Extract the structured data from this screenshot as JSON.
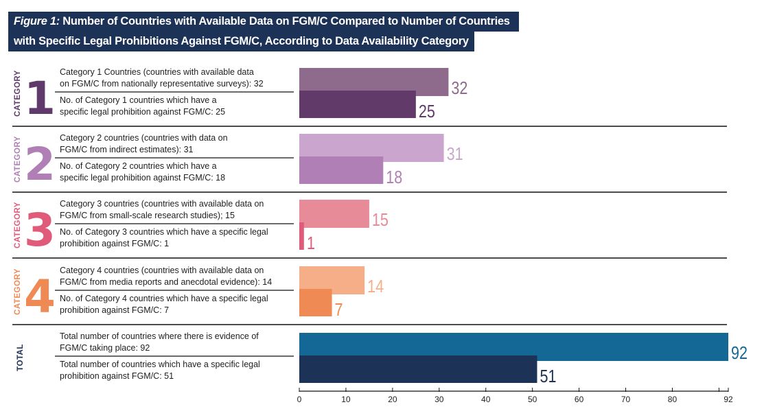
{
  "title": {
    "prefix": "Figure 1:",
    "line1": "Number of Countries with Available Data on FGM/C Compared to Number of Countries",
    "line2": "with Specific Legal Prohibitions Against FGM/C, According to Data Availability Category"
  },
  "chart_data": {
    "type": "bar",
    "orientation": "horizontal",
    "title": "Figure 1: Number of Countries with Available Data on FGM/C Compared to Number of Countries with Specific Legal Prohibitions Against FGM/C, According to Data Availability Category",
    "xlim": [
      0,
      92
    ],
    "xticks": [
      0,
      10,
      20,
      30,
      40,
      50,
      60,
      70,
      80,
      92
    ],
    "xlabel": "",
    "ylabel": "",
    "grid": false,
    "groups": [
      {
        "side_word": "CATEGORY",
        "big_label": "1",
        "label_color": "#5f3a6b",
        "bars": [
          {
            "text_line1": "Category 1 Countries (countries with available data",
            "text_line2": "on FGM/C from nationally representative surveys): 32",
            "value": 32,
            "color": "#8e6b8c"
          },
          {
            "text_line1": "No. of Category 1 countries which have a",
            "text_line2": "specific legal prohibition against FGM/C: 25",
            "value": 25,
            "color": "#613a6a"
          }
        ]
      },
      {
        "side_word": "CATEGORY",
        "big_label": "2",
        "label_color": "#b07fb5",
        "bars": [
          {
            "text_line1": "Category 2 countries (countries with data on",
            "text_line2": "FGM/C from indirect estimates): 31",
            "value": 31,
            "color": "#caa6cf"
          },
          {
            "text_line1": "No. of Category 2 countries which have a",
            "text_line2": "specific legal prohibition against FGM/C: 18",
            "value": 18,
            "color": "#b07fb5"
          }
        ]
      },
      {
        "side_word": "CATEGORY",
        "big_label": "3",
        "label_color": "#e05a7a",
        "bars": [
          {
            "text_line1": "Category 3 countries (countries with available data on",
            "text_line2": "FGM/C from small-scale research studies); 15",
            "value": 15,
            "color": "#e88b98"
          },
          {
            "text_line1": "No. of Category 3 countries which have a specific legal",
            "text_line2": "prohibition against FGM/C: 1",
            "value": 1,
            "color": "#e05a7a"
          }
        ]
      },
      {
        "side_word": "CATEGORY",
        "big_label": "4",
        "label_color": "#ef8a55",
        "bars": [
          {
            "text_line1": "Category 4 countries (countries with available data on",
            "text_line2": "FGM/C from media reports and anecdotal evidence): 14",
            "value": 14,
            "color": "#f5ae88"
          },
          {
            "text_line1": "No. of Category 4 countries which have a specific legal",
            "text_line2": "prohibition against FGM/C: 7",
            "value": 7,
            "color": "#ef8a55"
          }
        ]
      },
      {
        "side_word": "TOTAL",
        "big_label": "",
        "label_color": "#1c3257",
        "bars": [
          {
            "text_line1": "Total number of countries where there is evidence of",
            "text_line2": "FGM/C taking place: 92",
            "value": 92,
            "color": "#136895"
          },
          {
            "text_line1": "Total number of countries which have a specific legal",
            "text_line2": "prohibition against FGM/C: 51",
            "value": 51,
            "color": "#1c3257"
          }
        ]
      }
    ]
  }
}
